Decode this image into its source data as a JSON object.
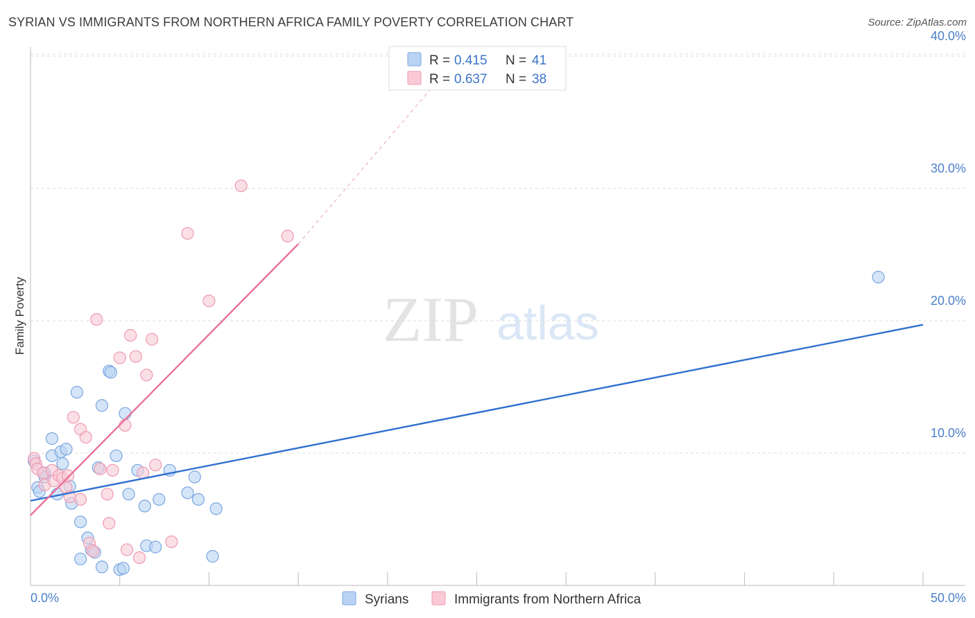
{
  "header": {
    "title": "SYRIAN VS IMMIGRANTS FROM NORTHERN AFRICA FAMILY POVERTY CORRELATION CHART",
    "source": "Source: ZipAtlas.com"
  },
  "watermark": {
    "zip": "ZIP",
    "atlas": "atlas"
  },
  "legend": {
    "r_label": "R =",
    "n_label": "N =",
    "entries": [
      {
        "r": "0.415",
        "n": "41",
        "color": "#9cc1ef"
      },
      {
        "r": "0.637",
        "n": "38",
        "color": "#f5b3c6"
      }
    ]
  },
  "colors": {
    "syrians_fill": "#b9d3f4",
    "syrians_stroke": "#7aa6e0",
    "syrians_line": "#2f6fd0",
    "naf_fill": "#f9c9d6",
    "naf_stroke": "#ee9ab2",
    "naf_line": "#e8709a",
    "grid": "#dddddd",
    "tick_text": "#4a7fc9"
  },
  "chart_data": {
    "type": "scatter",
    "title": "SYRIAN VS IMMIGRANTS FROM NORTHERN AFRICA FAMILY POVERTY CORRELATION CHART",
    "xlabel": "",
    "ylabel": "Family Poverty",
    "xlim": [
      0,
      50
    ],
    "ylim": [
      0,
      42
    ],
    "x_tick_labels": [
      "0.0%",
      "50.0%"
    ],
    "y_ticks": [
      10,
      20,
      30,
      40
    ],
    "y_tick_labels": [
      "10.0%",
      "20.0%",
      "30.0%",
      "40.0%"
    ],
    "grid": true,
    "legend_position": "top-center",
    "series": [
      {
        "name": "Syrians",
        "r": 0.415,
        "n": 41,
        "trend": {
          "x": [
            0,
            50
          ],
          "y": [
            6.4,
            19.7
          ],
          "dashed_to": null
        },
        "points": [
          [
            0.2,
            9.4
          ],
          [
            0.4,
            7.4
          ],
          [
            0.5,
            7.1
          ],
          [
            0.8,
            8.5
          ],
          [
            0.8,
            8.2
          ],
          [
            1.2,
            9.8
          ],
          [
            1.2,
            11.1
          ],
          [
            1.5,
            6.9
          ],
          [
            1.7,
            10.1
          ],
          [
            1.8,
            9.2
          ],
          [
            2.0,
            10.3
          ],
          [
            2.2,
            7.5
          ],
          [
            2.3,
            6.2
          ],
          [
            2.6,
            14.6
          ],
          [
            2.8,
            4.8
          ],
          [
            2.8,
            2.0
          ],
          [
            3.2,
            3.6
          ],
          [
            3.4,
            2.7
          ],
          [
            3.6,
            2.5
          ],
          [
            3.8,
            8.9
          ],
          [
            4.0,
            1.4
          ],
          [
            4.0,
            13.6
          ],
          [
            4.4,
            16.2
          ],
          [
            4.5,
            16.1
          ],
          [
            4.8,
            9.8
          ],
          [
            5.0,
            1.2
          ],
          [
            5.2,
            1.3
          ],
          [
            5.3,
            13.0
          ],
          [
            5.5,
            6.9
          ],
          [
            6.0,
            8.7
          ],
          [
            6.4,
            6.0
          ],
          [
            6.5,
            3.0
          ],
          [
            7.0,
            2.9
          ],
          [
            7.2,
            6.5
          ],
          [
            7.8,
            8.7
          ],
          [
            8.8,
            7.0
          ],
          [
            9.2,
            8.2
          ],
          [
            9.4,
            6.5
          ],
          [
            10.2,
            2.2
          ],
          [
            10.4,
            5.8
          ],
          [
            47.5,
            23.3
          ]
        ]
      },
      {
        "name": "Immigrants from Northern Africa",
        "r": 0.637,
        "n": 38,
        "trend": {
          "x": [
            0,
            15
          ],
          "y": [
            5.3,
            25.8
          ],
          "dashed_to": [
            24,
            40
          ]
        },
        "points": [
          [
            0.2,
            9.6
          ],
          [
            0.3,
            9.2
          ],
          [
            0.4,
            8.8
          ],
          [
            0.7,
            8.5
          ],
          [
            0.8,
            7.6
          ],
          [
            1.2,
            8.7
          ],
          [
            1.3,
            7.9
          ],
          [
            1.6,
            8.3
          ],
          [
            1.8,
            8.1
          ],
          [
            2.0,
            7.4
          ],
          [
            2.1,
            8.3
          ],
          [
            2.2,
            6.7
          ],
          [
            2.4,
            12.7
          ],
          [
            2.8,
            6.5
          ],
          [
            2.8,
            11.8
          ],
          [
            3.1,
            11.2
          ],
          [
            3.3,
            3.2
          ],
          [
            3.5,
            2.6
          ],
          [
            3.7,
            20.1
          ],
          [
            3.9,
            8.8
          ],
          [
            4.3,
            6.9
          ],
          [
            4.4,
            4.7
          ],
          [
            4.6,
            8.7
          ],
          [
            5.0,
            17.2
          ],
          [
            5.3,
            12.1
          ],
          [
            5.4,
            2.7
          ],
          [
            5.6,
            18.9
          ],
          [
            5.9,
            17.3
          ],
          [
            6.1,
            2.1
          ],
          [
            6.3,
            8.5
          ],
          [
            6.5,
            15.9
          ],
          [
            6.8,
            18.6
          ],
          [
            7.0,
            9.1
          ],
          [
            7.9,
            3.3
          ],
          [
            8.8,
            26.6
          ],
          [
            10.0,
            21.5
          ],
          [
            11.8,
            30.2
          ],
          [
            14.4,
            26.4
          ]
        ]
      }
    ]
  }
}
